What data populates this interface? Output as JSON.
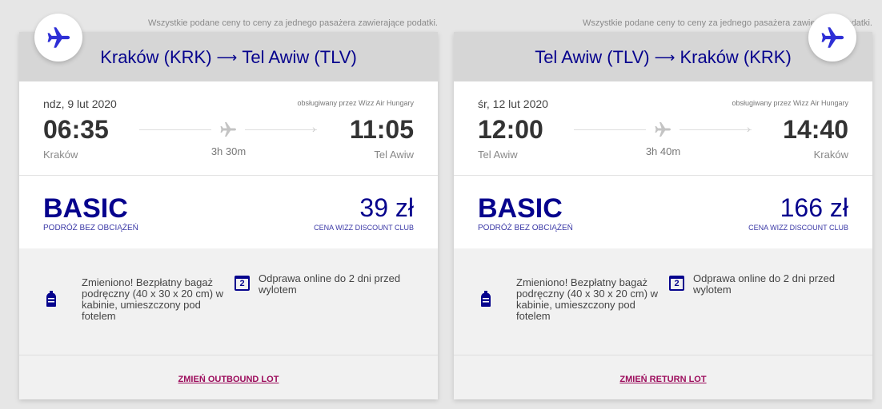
{
  "flights": [
    {
      "note": "Wszystkie podane ceny to ceny za jednego pasażera zawierające podatki.",
      "route_from": "Kraków (KRK)",
      "route_to": "Tel Awiw (TLV)",
      "date": "ndz, 9 lut 2020",
      "operator": "obsługiwany przez Wizz Air Hungary",
      "dep_time": "06:35",
      "arr_time": "11:05",
      "dep_city": "Kraków",
      "arr_city": "Tel Awiw",
      "duration": "3h 30m",
      "fare": "BASIC",
      "fare_sub": "PODRÓŻ BEZ OBCIĄŻEŃ",
      "price": "39 zł",
      "price_sub": "CENA WIZZ DISCOUNT CLUB",
      "baggage": "Zmieniono! Bezpłatny bagaż podręczny (40 x 30 x 20 cm) w kabinie, umieszczony pod fotelem",
      "checkin": "Odprawa online do 2 dni przed wylotem",
      "calendar_day": "2",
      "change": "ZMIEŃ OUTBOUND LOT"
    },
    {
      "note": "Wszystkie podane ceny to ceny za jednego pasażera zawierające podatki.",
      "route_from": "Tel Awiw (TLV)",
      "route_to": "Kraków (KRK)",
      "date": "śr, 12 lut 2020",
      "operator": "obsługiwany przez Wizz Air Hungary",
      "dep_time": "12:00",
      "arr_time": "14:40",
      "dep_city": "Tel Awiw",
      "arr_city": "Kraków",
      "duration": "3h 40m",
      "fare": "BASIC",
      "fare_sub": "PODRÓŻ BEZ OBCIĄŻEŃ",
      "price": "166 zł",
      "price_sub": "CENA WIZZ DISCOUNT CLUB",
      "baggage": "Zmieniono! Bezpłatny bagaż podręczny (40 x 30 x 20 cm) w kabinie, umieszczony pod fotelem",
      "checkin": "Odprawa online do 2 dni przed wylotem",
      "calendar_day": "2",
      "change": "ZMIEŃ RETURN LOT"
    }
  ],
  "colors": {
    "brand": "#06038d",
    "link": "#9c0c5c"
  }
}
